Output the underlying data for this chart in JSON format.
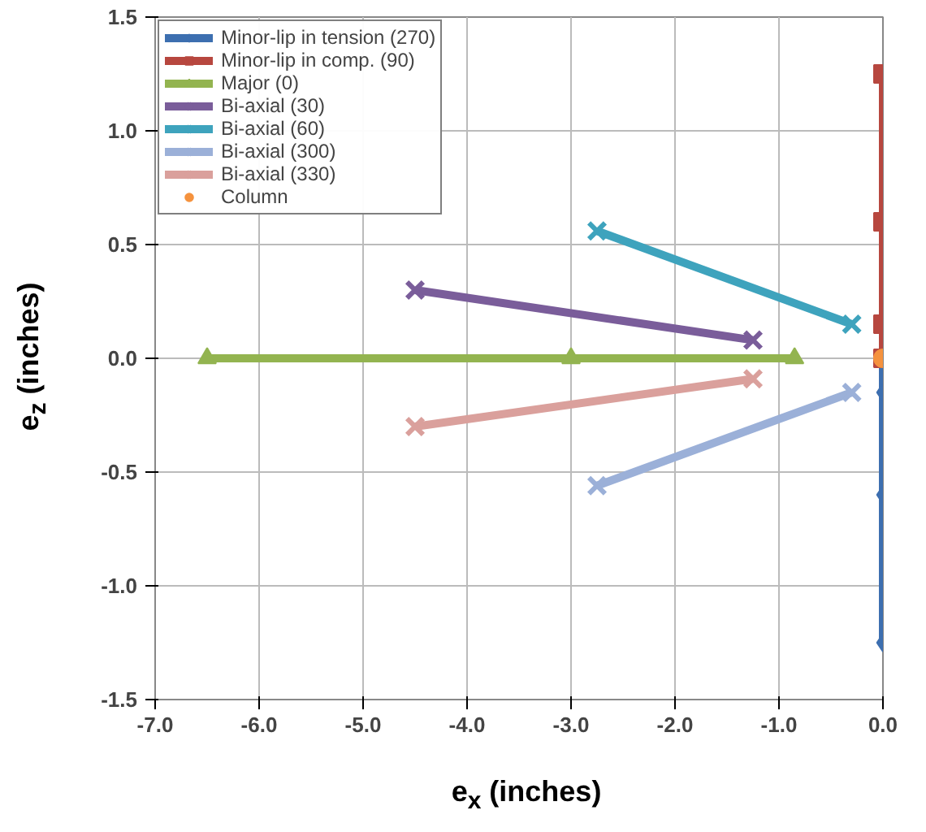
{
  "chart_data": {
    "type": "line",
    "xlabel": "e$_{x}$ (inches)",
    "ylabel": "e$_{z}$ (inches)",
    "xlim": [
      -7.0,
      0.0
    ],
    "ylim": [
      -1.5,
      1.5
    ],
    "xticks": [
      {
        "value": -7,
        "label": "-7.0"
      },
      {
        "value": -6,
        "label": "-6.0"
      },
      {
        "value": -5,
        "label": "-5.0"
      },
      {
        "value": -4,
        "label": "-4.0"
      },
      {
        "value": -3,
        "label": "-3.0"
      },
      {
        "value": -2,
        "label": "-2.0"
      },
      {
        "value": -1,
        "label": "-1.0"
      },
      {
        "value": 0,
        "label": "0.0"
      }
    ],
    "yticks": [
      {
        "value": -1.5,
        "label": "-1.5"
      },
      {
        "value": -1,
        "label": "-1.0"
      },
      {
        "value": -0.5,
        "label": "-0.5"
      },
      {
        "value": 0,
        "label": "0.0"
      },
      {
        "value": 0.5,
        "label": "0.5"
      },
      {
        "value": 1,
        "label": "1.0"
      },
      {
        "value": 1.5,
        "label": "1.5"
      }
    ],
    "grid": true,
    "legend": "top left",
    "series": [
      {
        "name": "Minor-lip in tension (270)",
        "color": "#3d6fb0",
        "marker": "diamond",
        "x": [
          0,
          0,
          0,
          0
        ],
        "values": [
          0,
          -0.15,
          -0.6,
          -1.25
        ]
      },
      {
        "name": "Minor-lip in comp. (90)",
        "color": "#b7473f",
        "marker": "square",
        "x": [
          0,
          0,
          0,
          0
        ],
        "values": [
          0,
          0.15,
          0.6,
          1.25
        ]
      },
      {
        "name": "Major (0)",
        "color": "#93b450",
        "marker": "triangle",
        "x": [
          -6.5,
          -3.0,
          -0.85
        ],
        "values": [
          0,
          0,
          0
        ]
      },
      {
        "name": "Bi-axial (30)",
        "color": "#7a5d9a",
        "marker": "cross",
        "x": [
          -4.5,
          -1.25
        ],
        "values": [
          0.3,
          0.08
        ]
      },
      {
        "name": "Bi-axial (60)",
        "color": "#3ea3bd",
        "marker": "cross",
        "x": [
          -2.75,
          -0.3
        ],
        "values": [
          0.56,
          0.15
        ]
      },
      {
        "name": "Bi-axial (300)",
        "color": "#9bb0d8",
        "marker": "cross",
        "x": [
          -2.75,
          -0.3
        ],
        "values": [
          -0.56,
          -0.15
        ]
      },
      {
        "name": "Bi-axial (330)",
        "color": "#daa09c",
        "marker": "cross",
        "x": [
          -4.5,
          -1.25
        ],
        "values": [
          -0.3,
          -0.09
        ]
      },
      {
        "name": "Column",
        "color": "#f5923e",
        "marker": "circle",
        "x": [
          0
        ],
        "values": [
          0
        ]
      }
    ]
  }
}
